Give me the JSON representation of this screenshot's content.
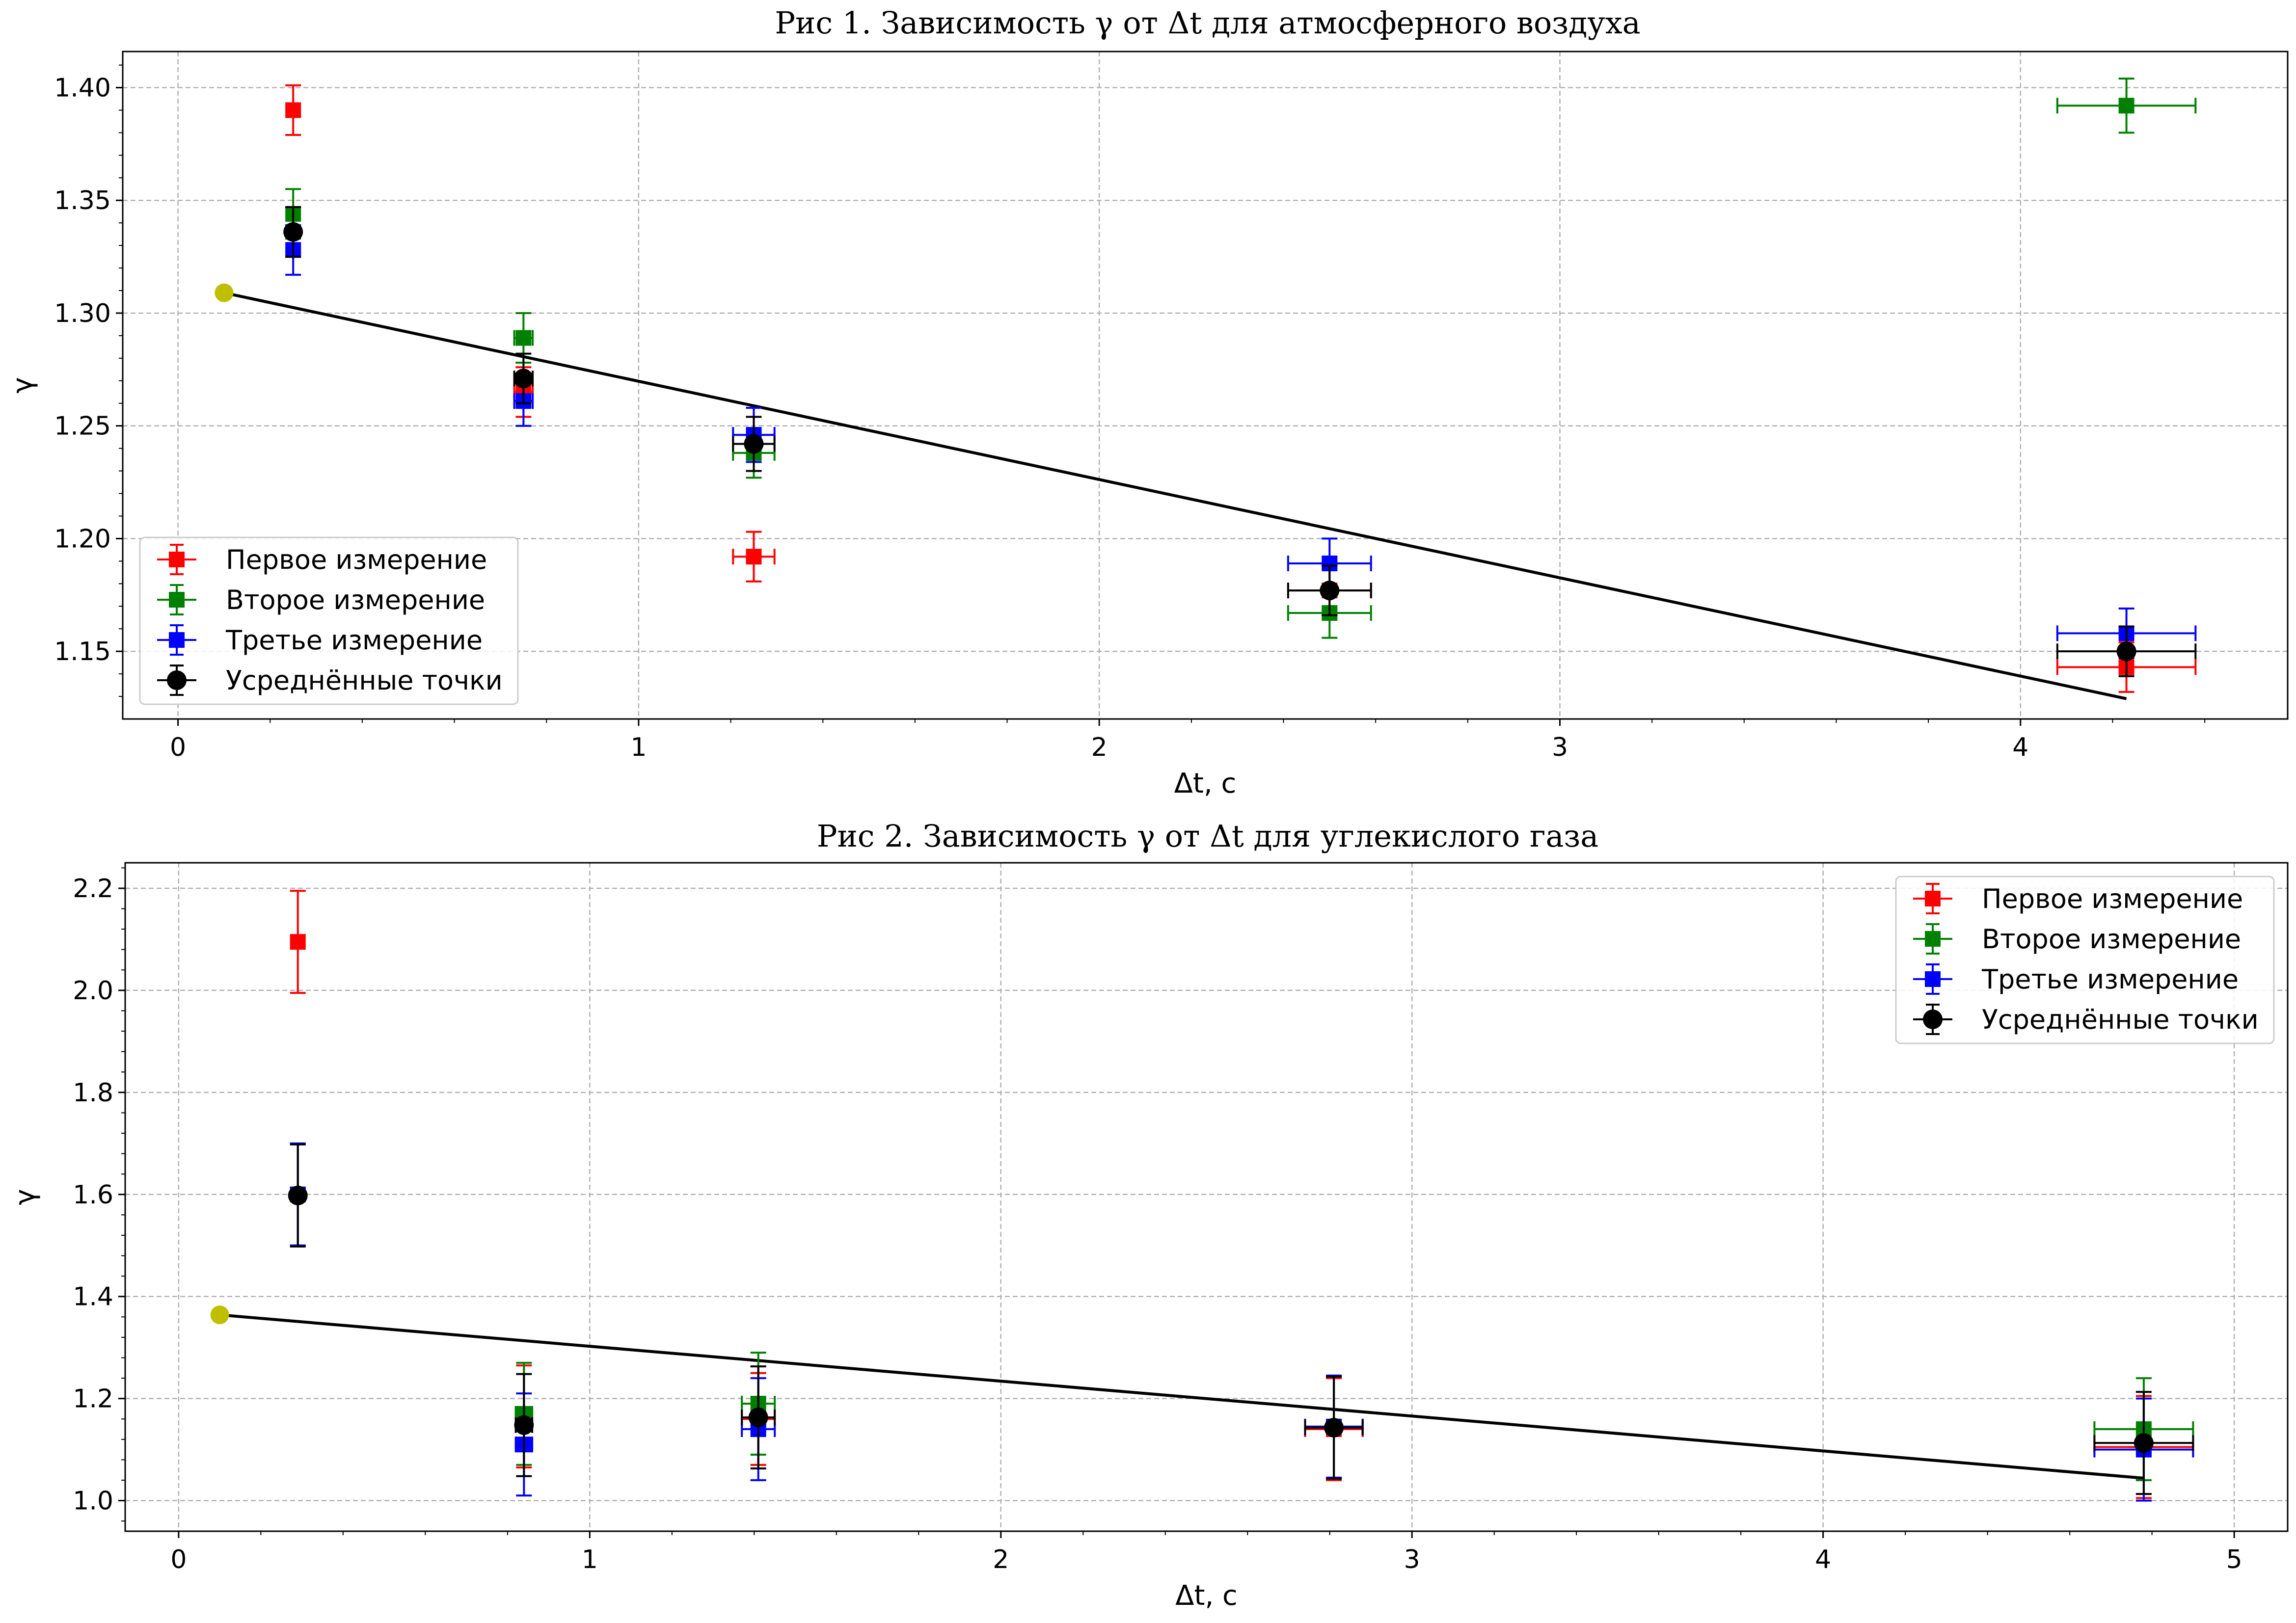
{
  "chart_data": [
    {
      "type": "scatter",
      "title": "Рис 1. Зависимость γ от Δt для атмосферного воздуха",
      "xlabel": "Δt, с",
      "ylabel": "γ",
      "xlim": [
        -0.12,
        4.58
      ],
      "ylim": [
        1.12,
        1.416
      ],
      "xticks": [
        0,
        1,
        2,
        3,
        4
      ],
      "xtick_labels": [
        "0",
        "1",
        "2",
        "3",
        "4"
      ],
      "yticks": [
        1.15,
        1.2,
        1.25,
        1.3,
        1.35,
        1.4
      ],
      "ytick_labels": [
        "1.15",
        "1.20",
        "1.25",
        "1.30",
        "1.35",
        "1.40"
      ],
      "grid": true,
      "legend_position": "lower-left",
      "series": [
        {
          "name": "Первое измерение",
          "color": "#ff0000",
          "marker": "square",
          "x": [
            0.25,
            0.75,
            1.25,
            2.5,
            4.23
          ],
          "y": [
            1.39,
            1.265,
            1.192,
            1.177,
            1.143
          ],
          "xerr": [
            0.0,
            0.02,
            0.045,
            0.09,
            0.15
          ],
          "yerr": [
            0.011,
            0.011,
            0.011,
            0.011,
            0.011
          ]
        },
        {
          "name": "Второе измерение",
          "color": "#008000",
          "marker": "square",
          "x": [
            0.25,
            0.75,
            1.25,
            2.5,
            4.23
          ],
          "y": [
            1.344,
            1.289,
            1.238,
            1.167,
            1.392
          ],
          "xerr": [
            0.0,
            0.02,
            0.045,
            0.09,
            0.15
          ],
          "yerr": [
            0.011,
            0.011,
            0.011,
            0.011,
            0.012
          ]
        },
        {
          "name": "Третье измерение",
          "color": "#0000ff",
          "marker": "square",
          "x": [
            0.25,
            0.75,
            1.25,
            2.5,
            4.23
          ],
          "y": [
            1.328,
            1.261,
            1.246,
            1.189,
            1.158
          ],
          "xerr": [
            0.0,
            0.02,
            0.045,
            0.09,
            0.15
          ],
          "yerr": [
            0.011,
            0.011,
            0.012,
            0.011,
            0.011
          ]
        },
        {
          "name": "Усреднённые точки",
          "color": "#000000",
          "marker": "circle",
          "x": [
            0.25,
            0.75,
            1.25,
            2.5,
            4.23
          ],
          "y": [
            1.336,
            1.271,
            1.242,
            1.177,
            1.15
          ],
          "xerr": [
            0.0,
            0.02,
            0.045,
            0.09,
            0.15
          ],
          "yerr": [
            0.011,
            0.011,
            0.012,
            0.011,
            0.011
          ]
        }
      ],
      "fit_line": {
        "color": "#000000",
        "x": [
          0.1,
          4.23
        ],
        "y": [
          1.309,
          1.129
        ]
      },
      "intercept_point": {
        "color": "#bfbf00",
        "x": 0.1,
        "y": 1.309
      }
    },
    {
      "type": "scatter",
      "title": "Рис 2. Зависимость γ от Δt для углекислого газа",
      "xlabel": "Δt, с",
      "ylabel": "γ",
      "xlim": [
        -0.13,
        5.13
      ],
      "ylim": [
        0.94,
        2.25
      ],
      "xticks": [
        0,
        1,
        2,
        3,
        4,
        5
      ],
      "xtick_labels": [
        "0",
        "1",
        "2",
        "3",
        "4",
        "5"
      ],
      "yticks": [
        1.0,
        1.2,
        1.4,
        1.6,
        1.8,
        2.0,
        2.2
      ],
      "ytick_labels": [
        "1.0",
        "1.2",
        "1.4",
        "1.6",
        "1.8",
        "2.0",
        "2.2"
      ],
      "grid": true,
      "legend_position": "upper-right",
      "series": [
        {
          "name": "Первое измерение",
          "color": "#ff0000",
          "marker": "square",
          "x": [
            0.29,
            0.84,
            1.41,
            2.81,
            4.78
          ],
          "y": [
            2.095,
            1.165,
            1.16,
            1.14,
            1.105
          ],
          "xerr": [
            0.0,
            0.02,
            0.04,
            0.07,
            0.12
          ],
          "yerr": [
            0.1,
            0.1,
            0.09,
            0.1,
            0.1
          ]
        },
        {
          "name": "Второе измерение",
          "color": "#008000",
          "marker": "square",
          "x": [
            0.29,
            0.84,
            1.41,
            2.81,
            4.78
          ],
          "y": [
            1.6,
            1.17,
            1.19,
            1.145,
            1.14
          ],
          "xerr": [
            0.0,
            0.02,
            0.04,
            0.07,
            0.12
          ],
          "yerr": [
            0.1,
            0.1,
            0.1,
            0.1,
            0.1
          ]
        },
        {
          "name": "Третье измерение",
          "color": "#0000ff",
          "marker": "square",
          "x": [
            0.29,
            0.84,
            1.41,
            2.81,
            4.78
          ],
          "y": [
            1.6,
            1.11,
            1.14,
            1.145,
            1.1
          ],
          "xerr": [
            0.0,
            0.02,
            0.04,
            0.07,
            0.12
          ],
          "yerr": [
            0.1,
            0.1,
            0.1,
            0.1,
            0.1
          ]
        },
        {
          "name": "Усреднённые точки",
          "color": "#000000",
          "marker": "circle",
          "x": [
            0.29,
            0.84,
            1.41,
            2.81,
            4.78
          ],
          "y": [
            1.598,
            1.148,
            1.163,
            1.143,
            1.113
          ],
          "xerr": [
            0.0,
            0.02,
            0.04,
            0.07,
            0.12
          ],
          "yerr": [
            0.1,
            0.1,
            0.1,
            0.1,
            0.1
          ]
        }
      ],
      "fit_line": {
        "color": "#000000",
        "x": [
          0.1,
          4.78
        ],
        "y": [
          1.364,
          1.044
        ]
      },
      "intercept_point": {
        "color": "#bfbf00",
        "x": 0.1,
        "y": 1.364
      }
    }
  ]
}
